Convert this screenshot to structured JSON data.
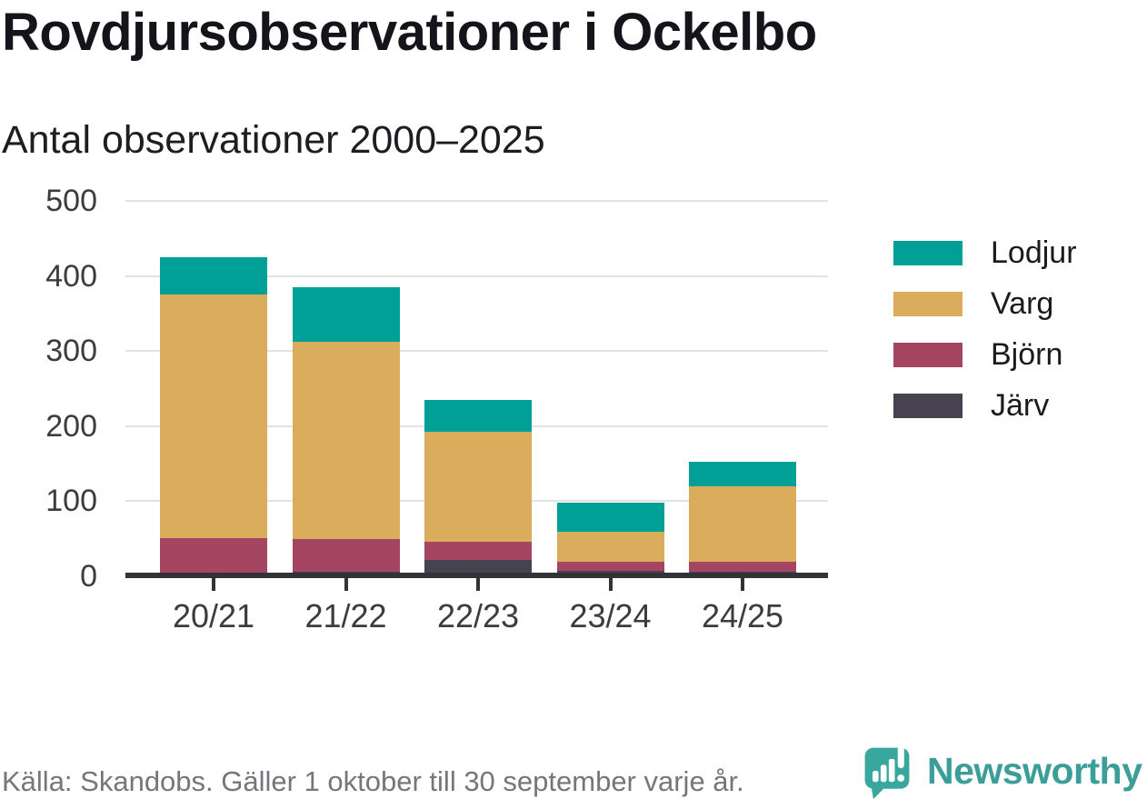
{
  "header": {
    "title": "Rovdjursobservationer i Ockelbo",
    "subtitle": "Antal observationer 2000–2025"
  },
  "chart_data": {
    "type": "bar",
    "stacked": true,
    "title": "Rovdjursobservationer i Ockelbo",
    "subtitle": "Antal observationer 2000–2025",
    "xlabel": "",
    "ylabel": "Antal observationer",
    "categories": [
      "20/21",
      "21/22",
      "22/23",
      "23/24",
      "24/25"
    ],
    "series": [
      {
        "name": "Lodjur",
        "color": "#00a096",
        "values": [
          50,
          73,
          43,
          38,
          33
        ]
      },
      {
        "name": "Varg",
        "color": "#d9ad5b",
        "values": [
          325,
          263,
          146,
          40,
          100
        ]
      },
      {
        "name": "Björn",
        "color": "#a64561",
        "values": [
          50,
          44,
          25,
          12,
          14
        ]
      },
      {
        "name": "Järv",
        "color": "#474250",
        "values": [
          0,
          5,
          21,
          7,
          5
        ]
      }
    ],
    "stack_order_bottom_to_top": [
      "Järv",
      "Björn",
      "Varg",
      "Lodjur"
    ],
    "totals": [
      425,
      385,
      235,
      97,
      152
    ],
    "ylim": [
      0,
      500
    ],
    "yticks": [
      0,
      100,
      200,
      300,
      400,
      500
    ],
    "grid": true,
    "legend_position": "right"
  },
  "legend": {
    "items": [
      "Lodjur",
      "Varg",
      "Björn",
      "Järv"
    ]
  },
  "footer": {
    "source": "Källa: Skandobs. Gäller 1 oktober till 30 september varje år.",
    "brand": "Newsworthy"
  },
  "colors": {
    "lodjur": "#00a096",
    "varg": "#d9ad5b",
    "bjorn": "#a64561",
    "jarv": "#474250",
    "axis": "#323238",
    "gridline": "#e2e2e4",
    "text_dark": "#14141a",
    "text_muted": "#75767b",
    "brand_teal": "#3c9e98"
  }
}
